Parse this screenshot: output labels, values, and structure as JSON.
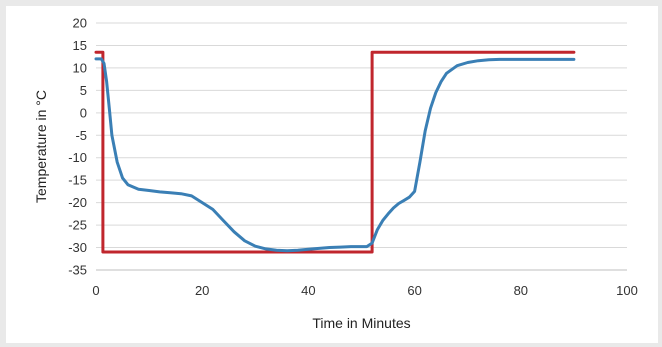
{
  "chart_data": {
    "type": "line",
    "title": "",
    "xlabel": "Time in Minutes",
    "ylabel": "Temperature in °C",
    "xlim": [
      0,
      100
    ],
    "ylim": [
      -35,
      20
    ],
    "xticks": [
      0,
      20,
      40,
      60,
      80,
      100
    ],
    "yticks": [
      -35,
      -30,
      -25,
      -20,
      -15,
      -10,
      -5,
      0,
      5,
      10,
      15,
      20
    ],
    "grid": "horizontal",
    "legend": "none",
    "series": [
      {
        "color": "#c0262d",
        "x": [
          0,
          1.3,
          1.3,
          52,
          52,
          90
        ],
        "y": [
          13.5,
          13.5,
          -31,
          -31,
          13.5,
          13.5
        ]
      },
      {
        "color": "#3a7fb5",
        "x": [
          0,
          1,
          1.5,
          2,
          2.5,
          3,
          4,
          5,
          6,
          8,
          10,
          12,
          14,
          16,
          18,
          20,
          22,
          24,
          26,
          28,
          30,
          32,
          34,
          36,
          38,
          40,
          42,
          44,
          46,
          48,
          50,
          51,
          52,
          53,
          54,
          55,
          56,
          57,
          58,
          59,
          60,
          61,
          62,
          63,
          64,
          65,
          66,
          68,
          70,
          72,
          74,
          76,
          78,
          80,
          85,
          90
        ],
        "y": [
          12,
          12,
          11,
          7,
          1,
          -5,
          -11,
          -14.5,
          -16,
          -17,
          -17.3,
          -17.6,
          -17.8,
          -18,
          -18.5,
          -20,
          -21.5,
          -24,
          -26.5,
          -28.5,
          -29.7,
          -30.3,
          -30.6,
          -30.7,
          -30.6,
          -30.4,
          -30.2,
          -30.0,
          -29.9,
          -29.8,
          -29.8,
          -29.8,
          -29,
          -26,
          -24,
          -22.5,
          -21.2,
          -20.2,
          -19.5,
          -18.8,
          -17.5,
          -11,
          -4,
          1,
          4.5,
          7,
          8.8,
          10.5,
          11.2,
          11.6,
          11.8,
          11.9,
          11.9,
          11.9,
          11.9,
          11.9
        ]
      }
    ]
  }
}
